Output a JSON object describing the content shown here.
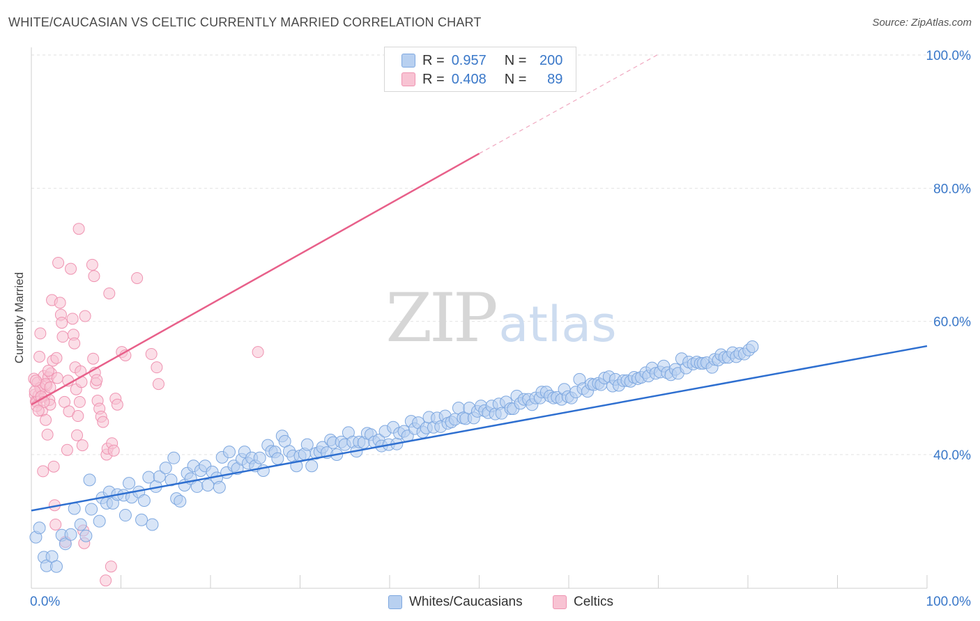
{
  "header": {
    "title": "WHITE/CAUCASIAN VS CELTIC CURRENTLY MARRIED CORRELATION CHART",
    "source": "Source: ZipAtlas.com"
  },
  "watermark": {
    "zip": "ZIP",
    "atlas": "atlas"
  },
  "legend": {
    "rows": [
      {
        "r_label": "R =",
        "r_value": "0.957",
        "n_label": "N =",
        "n_value": "200",
        "fill": "#b8d0f0",
        "stroke": "#7ea8e0"
      },
      {
        "r_label": "R =",
        "r_value": "0.408",
        "n_label": "N =",
        "n_value": "89",
        "fill": "#f8c3d3",
        "stroke": "#ef93b1"
      }
    ]
  },
  "bottom_legend": {
    "items": [
      {
        "label": "Whites/Caucasians"
      },
      {
        "label": "Celtics"
      }
    ]
  },
  "colors": {
    "blue_fill": "#b8d0f0",
    "blue_stroke": "#7ea8e0",
    "blue_line": "#2e6fd0",
    "pink_fill": "#f8c3d3",
    "pink_stroke": "#ef93b1",
    "pink_line": "#e8608a",
    "grid": "#e2e2e2",
    "tick_text": "#3a78c9"
  },
  "chart_data": {
    "type": "scatter",
    "title": "WHITE/CAUCASIAN VS CELTIC CURRENTLY MARRIED CORRELATION CHART",
    "xlabel": "",
    "ylabel": "Currently Married",
    "xlim": [
      0,
      100
    ],
    "ylim": [
      18,
      100
    ],
    "x_tick_labels": [
      "0.0%",
      "100.0%"
    ],
    "y_ticks": [
      40,
      60,
      80,
      100
    ],
    "y_tick_labels": [
      "40.0%",
      "60.0%",
      "80.0%",
      "100.0%"
    ],
    "grid": true,
    "legend_position": "top-center",
    "series": [
      {
        "name": "Whites/Caucasians",
        "color": "#7ea8e0",
        "r": 0.957,
        "n": 200,
        "trend": {
          "x": [
            0,
            100
          ],
          "y": [
            31.6,
            56.3
          ]
        },
        "points": [
          [
            0.5,
            27.6
          ],
          [
            0.9,
            29.0
          ],
          [
            1.4,
            24.6
          ],
          [
            1.7,
            23.3
          ],
          [
            2.3,
            24.7
          ],
          [
            2.8,
            23.2
          ],
          [
            3.4,
            27.9
          ],
          [
            3.8,
            26.6
          ],
          [
            4.4,
            28.0
          ],
          [
            4.8,
            31.9
          ],
          [
            5.5,
            29.5
          ],
          [
            6.1,
            27.8
          ],
          [
            6.5,
            36.2
          ],
          [
            6.7,
            31.8
          ],
          [
            7.6,
            30.0
          ],
          [
            7.9,
            33.5
          ],
          [
            8.4,
            32.7
          ],
          [
            8.7,
            34.4
          ],
          [
            9.1,
            32.7
          ],
          [
            9.6,
            34.0
          ],
          [
            10.3,
            33.9
          ],
          [
            10.5,
            30.9
          ],
          [
            10.9,
            35.7
          ],
          [
            11.2,
            33.6
          ],
          [
            12.0,
            34.4
          ],
          [
            12.3,
            30.2
          ],
          [
            12.6,
            33.1
          ],
          [
            13.1,
            36.6
          ],
          [
            13.5,
            29.5
          ],
          [
            13.9,
            35.2
          ],
          [
            14.3,
            36.7
          ],
          [
            15.0,
            38.0
          ],
          [
            15.6,
            36.2
          ],
          [
            15.9,
            39.5
          ],
          [
            16.2,
            33.4
          ],
          [
            16.6,
            33.0
          ],
          [
            17.1,
            35.4
          ],
          [
            17.4,
            37.2
          ],
          [
            17.8,
            36.4
          ],
          [
            18.1,
            38.3
          ],
          [
            18.5,
            35.2
          ],
          [
            18.9,
            37.6
          ],
          [
            19.4,
            38.3
          ],
          [
            19.7,
            35.4
          ],
          [
            20.2,
            37.4
          ],
          [
            20.7,
            36.5
          ],
          [
            21.0,
            35.1
          ],
          [
            21.3,
            39.6
          ],
          [
            21.8,
            37.3
          ],
          [
            22.1,
            40.4
          ],
          [
            22.6,
            38.3
          ],
          [
            23.0,
            37.9
          ],
          [
            23.5,
            39.3
          ],
          [
            23.8,
            40.4
          ],
          [
            24.2,
            38.7
          ],
          [
            24.6,
            39.5
          ],
          [
            25.0,
            38.3
          ],
          [
            25.5,
            39.5
          ],
          [
            25.9,
            37.6
          ],
          [
            26.4,
            41.4
          ],
          [
            26.8,
            40.5
          ],
          [
            27.2,
            40.4
          ],
          [
            27.5,
            39.4
          ],
          [
            28.0,
            42.8
          ],
          [
            28.3,
            42.0
          ],
          [
            28.8,
            40.5
          ],
          [
            29.2,
            39.8
          ],
          [
            29.6,
            38.3
          ],
          [
            30.0,
            39.8
          ],
          [
            30.5,
            40.1
          ],
          [
            30.8,
            41.5
          ],
          [
            31.3,
            38.3
          ],
          [
            31.8,
            40.2
          ],
          [
            32.2,
            40.4
          ],
          [
            32.5,
            41.1
          ],
          [
            33.0,
            40.3
          ],
          [
            33.4,
            42.2
          ],
          [
            33.7,
            41.8
          ],
          [
            34.1,
            40.0
          ],
          [
            34.6,
            41.9
          ],
          [
            35.0,
            41.5
          ],
          [
            35.4,
            43.3
          ],
          [
            35.9,
            41.9
          ],
          [
            36.3,
            40.5
          ],
          [
            36.6,
            41.9
          ],
          [
            37.1,
            41.8
          ],
          [
            37.5,
            43.2
          ],
          [
            37.9,
            43.0
          ],
          [
            38.3,
            41.9
          ],
          [
            38.8,
            42.2
          ],
          [
            39.1,
            41.3
          ],
          [
            39.5,
            43.5
          ],
          [
            39.9,
            41.5
          ],
          [
            40.4,
            44.1
          ],
          [
            40.8,
            41.6
          ],
          [
            41.1,
            43.2
          ],
          [
            41.6,
            43.5
          ],
          [
            42.0,
            42.8
          ],
          [
            42.4,
            45.0
          ],
          [
            42.8,
            43.9
          ],
          [
            43.2,
            44.8
          ],
          [
            43.7,
            43.4
          ],
          [
            44.1,
            44.0
          ],
          [
            44.4,
            45.6
          ],
          [
            44.9,
            44.1
          ],
          [
            45.3,
            45.5
          ],
          [
            45.7,
            44.2
          ],
          [
            46.2,
            45.8
          ],
          [
            46.5,
            44.7
          ],
          [
            46.9,
            44.9
          ],
          [
            47.3,
            45.3
          ],
          [
            47.7,
            47.0
          ],
          [
            48.2,
            45.5
          ],
          [
            48.5,
            45.4
          ],
          [
            48.9,
            47.0
          ],
          [
            49.4,
            45.5
          ],
          [
            49.8,
            46.5
          ],
          [
            50.2,
            47.3
          ],
          [
            50.6,
            46.6
          ],
          [
            51.0,
            46.3
          ],
          [
            51.4,
            47.3
          ],
          [
            51.8,
            46.1
          ],
          [
            52.2,
            47.6
          ],
          [
            52.5,
            46.2
          ],
          [
            53.0,
            47.9
          ],
          [
            53.5,
            46.9
          ],
          [
            53.8,
            46.9
          ],
          [
            54.2,
            48.8
          ],
          [
            54.6,
            47.7
          ],
          [
            55.0,
            48.3
          ],
          [
            55.5,
            48.3
          ],
          [
            55.9,
            47.5
          ],
          [
            56.3,
            48.5
          ],
          [
            56.8,
            48.5
          ],
          [
            57.0,
            49.4
          ],
          [
            57.5,
            49.4
          ],
          [
            57.9,
            48.8
          ],
          [
            58.3,
            48.5
          ],
          [
            58.7,
            48.6
          ],
          [
            59.2,
            48.3
          ],
          [
            59.5,
            49.8
          ],
          [
            59.9,
            48.7
          ],
          [
            60.3,
            48.5
          ],
          [
            60.8,
            49.4
          ],
          [
            61.2,
            51.3
          ],
          [
            61.6,
            49.9
          ],
          [
            62.1,
            49.5
          ],
          [
            62.5,
            50.6
          ],
          [
            62.8,
            50.5
          ],
          [
            63.3,
            50.7
          ],
          [
            63.6,
            50.5
          ],
          [
            64.0,
            51.5
          ],
          [
            64.5,
            51.7
          ],
          [
            64.9,
            50.3
          ],
          [
            65.2,
            51.3
          ],
          [
            65.6,
            50.4
          ],
          [
            66.1,
            51.1
          ],
          [
            66.5,
            51.1
          ],
          [
            66.9,
            51.0
          ],
          [
            67.3,
            51.6
          ],
          [
            67.7,
            51.4
          ],
          [
            68.1,
            51.6
          ],
          [
            68.6,
            52.3
          ],
          [
            68.9,
            51.8
          ],
          [
            69.3,
            53.0
          ],
          [
            69.7,
            52.2
          ],
          [
            70.2,
            52.4
          ],
          [
            70.6,
            53.3
          ],
          [
            71.0,
            52.3
          ],
          [
            71.4,
            52.0
          ],
          [
            71.9,
            52.8
          ],
          [
            72.2,
            52.2
          ],
          [
            72.6,
            54.4
          ],
          [
            73.1,
            53.0
          ],
          [
            73.4,
            53.9
          ],
          [
            73.9,
            53.6
          ],
          [
            74.3,
            53.9
          ],
          [
            74.7,
            53.7
          ],
          [
            75.0,
            53.7
          ],
          [
            75.4,
            53.8
          ],
          [
            76.0,
            53.1
          ],
          [
            76.3,
            54.3
          ],
          [
            76.7,
            54.2
          ],
          [
            77.0,
            55.0
          ],
          [
            77.4,
            54.6
          ],
          [
            77.8,
            54.6
          ],
          [
            78.3,
            55.3
          ],
          [
            78.7,
            54.7
          ],
          [
            79.1,
            55.2
          ],
          [
            79.6,
            55.1
          ],
          [
            80.1,
            55.7
          ],
          [
            80.5,
            56.2
          ]
        ]
      },
      {
        "name": "Celtics",
        "color": "#ef93b1",
        "r": 0.408,
        "n": 89,
        "trend": {
          "x": [
            0,
            50
          ],
          "y": [
            47.5,
            85.2
          ]
        },
        "trend_dashed": {
          "x": [
            50,
            70
          ],
          "y": [
            85.2,
            100.1
          ]
        },
        "points": [
          [
            0.3,
            51.4
          ],
          [
            0.4,
            49.0
          ],
          [
            0.5,
            48.0
          ],
          [
            0.6,
            47.9
          ],
          [
            0.7,
            50.8
          ],
          [
            0.8,
            48.9
          ],
          [
            0.9,
            54.7
          ],
          [
            1.0,
            58.2
          ],
          [
            1.1,
            49.8
          ],
          [
            1.2,
            46.6
          ],
          [
            1.3,
            37.5
          ],
          [
            1.4,
            51.8
          ],
          [
            1.5,
            49.0
          ],
          [
            1.6,
            45.2
          ],
          [
            1.7,
            50.4
          ],
          [
            1.8,
            43.0
          ],
          [
            1.9,
            51.6
          ],
          [
            2.0,
            48.2
          ],
          [
            2.1,
            47.5
          ],
          [
            2.2,
            52.2
          ],
          [
            2.3,
            63.2
          ],
          [
            2.4,
            54.1
          ],
          [
            2.5,
            38.2
          ],
          [
            2.6,
            32.4
          ],
          [
            2.7,
            29.5
          ],
          [
            2.8,
            54.5
          ],
          [
            2.9,
            51.5
          ],
          [
            3.0,
            68.8
          ],
          [
            3.2,
            62.8
          ],
          [
            3.3,
            61.0
          ],
          [
            3.4,
            59.8
          ],
          [
            3.5,
            57.7
          ],
          [
            3.7,
            47.9
          ],
          [
            3.8,
            26.9
          ],
          [
            4.0,
            40.7
          ],
          [
            4.1,
            51.1
          ],
          [
            4.2,
            46.5
          ],
          [
            4.4,
            67.9
          ],
          [
            4.6,
            60.4
          ],
          [
            4.7,
            58.0
          ],
          [
            4.8,
            56.7
          ],
          [
            4.9,
            53.1
          ],
          [
            5.0,
            49.8
          ],
          [
            5.1,
            42.9
          ],
          [
            5.2,
            45.8
          ],
          [
            5.3,
            73.9
          ],
          [
            5.4,
            47.9
          ],
          [
            5.5,
            52.5
          ],
          [
            5.6,
            50.9
          ],
          [
            5.7,
            41.4
          ],
          [
            5.8,
            28.6
          ],
          [
            5.9,
            26.7
          ],
          [
            6.0,
            60.8
          ],
          [
            6.8,
            68.5
          ],
          [
            6.9,
            54.4
          ],
          [
            7.0,
            66.8
          ],
          [
            7.1,
            52.3
          ],
          [
            7.2,
            50.7
          ],
          [
            7.3,
            51.2
          ],
          [
            7.4,
            48.1
          ],
          [
            7.6,
            46.9
          ],
          [
            7.8,
            45.7
          ],
          [
            8.0,
            44.9
          ],
          [
            8.3,
            21.1
          ],
          [
            8.4,
            40.0
          ],
          [
            8.5,
            40.9
          ],
          [
            8.7,
            64.2
          ],
          [
            8.9,
            23.2
          ],
          [
            9.0,
            41.7
          ],
          [
            9.2,
            40.6
          ],
          [
            9.4,
            48.4
          ],
          [
            9.6,
            47.5
          ],
          [
            10.1,
            55.4
          ],
          [
            10.5,
            54.9
          ],
          [
            11.8,
            66.5
          ],
          [
            13.4,
            55.1
          ],
          [
            14.0,
            53.1
          ],
          [
            14.2,
            50.6
          ],
          [
            25.3,
            55.4
          ],
          [
            1.0,
            50.0
          ],
          [
            0.4,
            49.5
          ],
          [
            0.6,
            47.3
          ],
          [
            1.1,
            48.7
          ],
          [
            1.4,
            47.9
          ],
          [
            1.6,
            50.6
          ],
          [
            1.9,
            52.6
          ],
          [
            2.1,
            50.1
          ],
          [
            0.8,
            46.6
          ],
          [
            0.5,
            51.1
          ]
        ]
      }
    ]
  }
}
